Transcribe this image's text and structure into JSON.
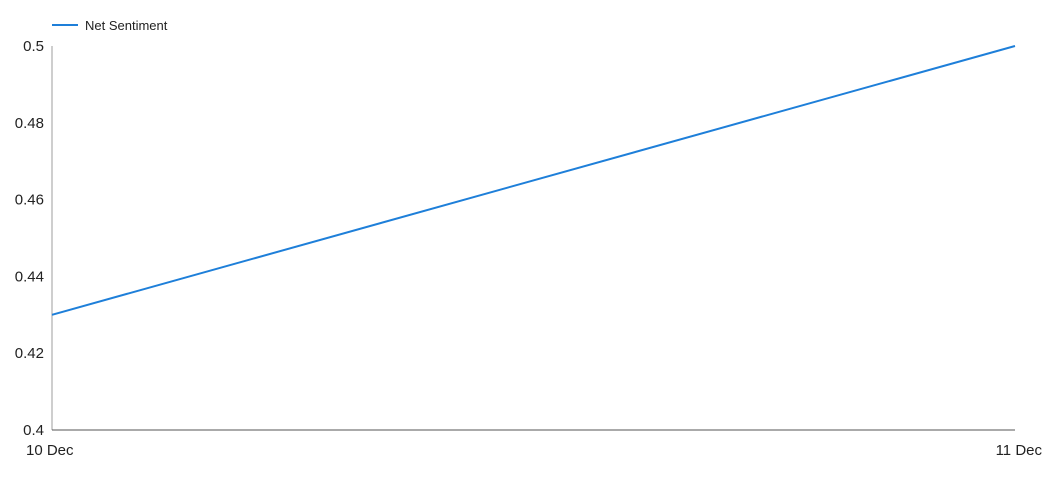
{
  "chart_data": {
    "type": "line",
    "x": [
      "10 Dec",
      "11 Dec"
    ],
    "series": [
      {
        "name": "Net Sentiment",
        "values": [
          0.43,
          0.5
        ],
        "color": "#1e7fd9"
      }
    ],
    "ylim": [
      0.4,
      0.5
    ],
    "y_ticks": [
      "0.4",
      "0.42",
      "0.44",
      "0.46",
      "0.48",
      "0.5"
    ],
    "grid": false,
    "legend_position": "top-left"
  }
}
